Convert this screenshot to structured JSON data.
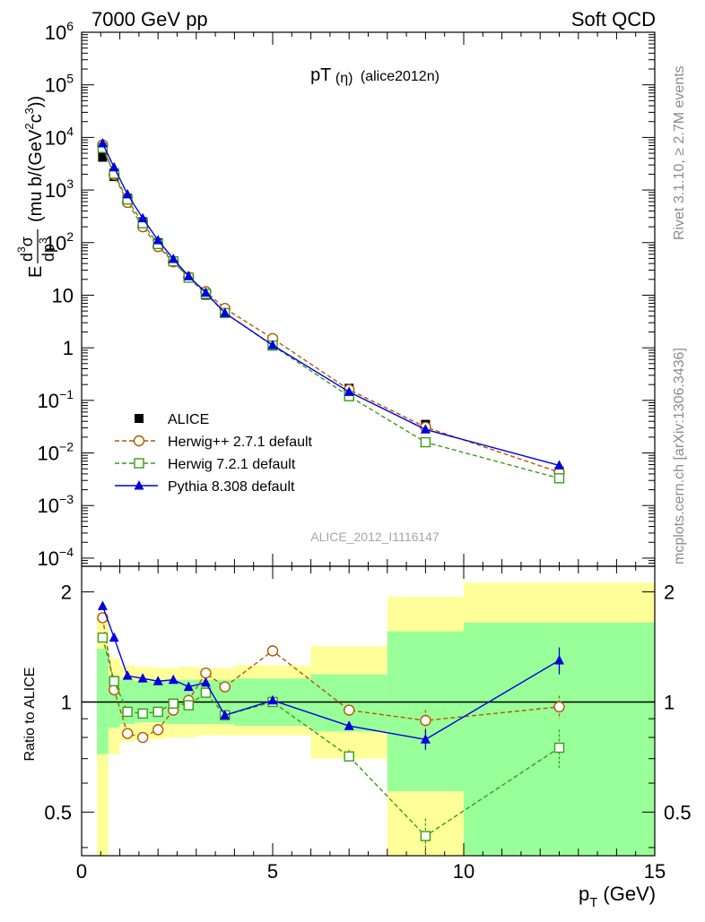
{
  "header": {
    "left": "7000 GeV pp",
    "right": "Soft QCD",
    "rivet": "Rivet 3.1.10, ≥ 2.7M events",
    "mcplots": "mcplots.cern.ch [arXiv:1306.3436]",
    "analysis": "ALICE_2012_I1116147",
    "title_main": "pT",
    "title_paren": "(η)",
    "title_tag": "(alice2012n)"
  },
  "axes": {
    "xlabel_main": "p",
    "xlabel_sub": "T",
    "xlabel_unit": "(GeV)",
    "ylabel_main": "E",
    "ylabel_num": "d",
    "ylabel_num_sup": "3",
    "ylabel_num_sym": "σ",
    "ylabel_den": "dp",
    "ylabel_den_sup": "3",
    "ylabel_unit_pre": "(mu b/(GeV",
    "ylabel_unit_sup": "2",
    "ylabel_unit_mid": "c",
    "ylabel_unit_sup2": "3",
    "ylabel_unit_post": "))",
    "ratio_ylabel": "Ratio to ALICE"
  },
  "colors": {
    "alice": "#000000",
    "herwigpp": "#b35900",
    "herwig7": "#3a9a1a",
    "pythia": "#0000dd",
    "band_inner": "#99ff99",
    "band_outer": "#ffff99"
  },
  "chart_data": [
    {
      "type": "scatter",
      "panel": "main",
      "xlim": [
        0,
        15
      ],
      "ylim": [
        7e-05,
        1000000
      ],
      "ylog": true,
      "x_ticks": [
        0,
        5,
        10,
        15
      ],
      "y_ticks": [
        {
          "v": 0.0001,
          "b": "10",
          "e": "−4"
        },
        {
          "v": 0.001,
          "b": "10",
          "e": "−3"
        },
        {
          "v": 0.01,
          "b": "10",
          "e": "−2"
        },
        {
          "v": 0.1,
          "b": "10",
          "e": "−1"
        },
        {
          "v": 1,
          "b": "1",
          "e": ""
        },
        {
          "v": 10,
          "b": "10",
          "e": ""
        },
        {
          "v": 100,
          "b": "10",
          "e": "2"
        },
        {
          "v": 1000,
          "b": "10",
          "e": "3"
        },
        {
          "v": 10000,
          "b": "10",
          "e": "4"
        },
        {
          "v": 100000,
          "b": "10",
          "e": "5"
        },
        {
          "v": 1000000,
          "b": "10",
          "e": "6"
        }
      ],
      "legend_position": "bottom-left",
      "series": [
        {
          "name": "ALICE",
          "style": "square-filled",
          "x": [
            0.55,
            0.85,
            1.2,
            1.6,
            2.0,
            2.4,
            2.8,
            3.25,
            3.75,
            5.0,
            7.0,
            9.0,
            12.5
          ],
          "y": [
            4200,
            1800,
            700,
            250,
            100,
            45,
            22,
            10,
            5,
            1.1,
            0.17,
            0.035,
            0.0045
          ]
        },
        {
          "name": "Herwig++ 2.7.1 default",
          "style": "circle-open-dashed",
          "x": [
            0.55,
            0.85,
            1.2,
            1.6,
            2.0,
            2.4,
            2.8,
            3.25,
            3.75,
            5.0,
            7.0,
            9.0,
            12.5
          ],
          "y": [
            7200,
            1950,
            580,
            200,
            84,
            43,
            22,
            11.7,
            5.6,
            1.5,
            0.16,
            0.031,
            0.0043
          ]
        },
        {
          "name": "Herwig 7.2.1 default",
          "style": "square-open-dashed",
          "x": [
            0.55,
            0.85,
            1.2,
            1.6,
            2.0,
            2.4,
            2.8,
            3.25,
            3.75,
            5.0,
            7.0,
            9.0,
            12.5
          ],
          "y": [
            6300,
            2050,
            660,
            233,
            94,
            44,
            21.5,
            10.6,
            4.6,
            1.1,
            0.12,
            0.016,
            0.0033
          ]
        },
        {
          "name": "Pythia 8.308 default",
          "style": "triangle-filled-solid",
          "x": [
            0.55,
            0.85,
            1.2,
            1.6,
            2.0,
            2.4,
            2.8,
            3.25,
            3.75,
            5.0,
            7.0,
            9.0,
            12.5
          ],
          "y": [
            7700,
            2700,
            830,
            290,
            111,
            49,
            23,
            11.2,
            4.6,
            1.12,
            0.145,
            0.028,
            0.0058
          ]
        }
      ]
    },
    {
      "type": "scatter",
      "panel": "ratio",
      "xlim": [
        0,
        15
      ],
      "ylim": [
        0.38,
        2.35
      ],
      "ylog": true,
      "y_ticks": [
        0.5,
        1,
        2
      ],
      "reference_line": 1,
      "bands": {
        "edges": [
          0.4,
          0.7,
          1.0,
          1.4,
          1.8,
          2.2,
          2.6,
          3.0,
          3.5,
          4.0,
          6.0,
          8.0,
          10.0,
          15.0
        ],
        "inner_lo": [
          0.72,
          0.85,
          0.87,
          0.88,
          0.88,
          0.87,
          0.87,
          0.87,
          0.87,
          0.86,
          0.83,
          0.57,
          0.37
        ],
        "inner_hi": [
          1.4,
          1.18,
          1.15,
          1.14,
          1.14,
          1.15,
          1.15,
          1.15,
          1.15,
          1.16,
          1.19,
          1.56,
          1.65
        ],
        "outer_lo": [
          0.38,
          0.72,
          0.78,
          0.79,
          0.79,
          0.8,
          0.8,
          0.81,
          0.81,
          0.81,
          0.7,
          0.38,
          0.37
        ],
        "outer_hi": [
          1.75,
          1.32,
          1.26,
          1.25,
          1.24,
          1.24,
          1.25,
          1.24,
          1.24,
          1.26,
          1.42,
          1.94,
          2.12
        ]
      },
      "series": [
        {
          "name": "Herwig++ 2.7.1 default",
          "style": "circle-open-dashed",
          "x": [
            0.55,
            0.85,
            1.2,
            1.6,
            2.0,
            2.4,
            2.8,
            3.25,
            3.75,
            5.0,
            7.0,
            9.0,
            12.5
          ],
          "y": [
            1.7,
            1.08,
            0.82,
            0.8,
            0.84,
            0.95,
            1.01,
            1.2,
            1.1,
            1.38,
            0.95,
            0.89,
            0.97
          ],
          "err": [
            0,
            0,
            0,
            0,
            0,
            0,
            0,
            0,
            0,
            0,
            0.03,
            0.06,
            0.07
          ]
        },
        {
          "name": "Herwig 7.2.1 default",
          "style": "square-open-dashed",
          "x": [
            0.55,
            0.85,
            1.2,
            1.6,
            2.0,
            2.4,
            2.8,
            3.25,
            3.75,
            5.0,
            7.0,
            9.0,
            12.5
          ],
          "y": [
            1.5,
            1.14,
            0.94,
            0.93,
            0.94,
            0.99,
            0.98,
            1.06,
            0.92,
            1.0,
            0.71,
            0.43,
            0.75
          ],
          "err": [
            0,
            0,
            0,
            0,
            0,
            0,
            0,
            0,
            0,
            0,
            0.03,
            0.05,
            0.09
          ]
        },
        {
          "name": "Pythia 8.308 default",
          "style": "triangle-filled-solid",
          "x": [
            0.55,
            0.85,
            1.2,
            1.6,
            2.0,
            2.4,
            2.8,
            3.25,
            3.75,
            5.0,
            7.0,
            9.0,
            12.5
          ],
          "y": [
            1.83,
            1.5,
            1.18,
            1.16,
            1.14,
            1.15,
            1.1,
            1.13,
            0.92,
            1.01,
            0.86,
            0.79,
            1.3
          ],
          "err": [
            0,
            0,
            0,
            0,
            0,
            0,
            0,
            0,
            0,
            0,
            0.02,
            0.05,
            0.11
          ]
        }
      ]
    }
  ]
}
